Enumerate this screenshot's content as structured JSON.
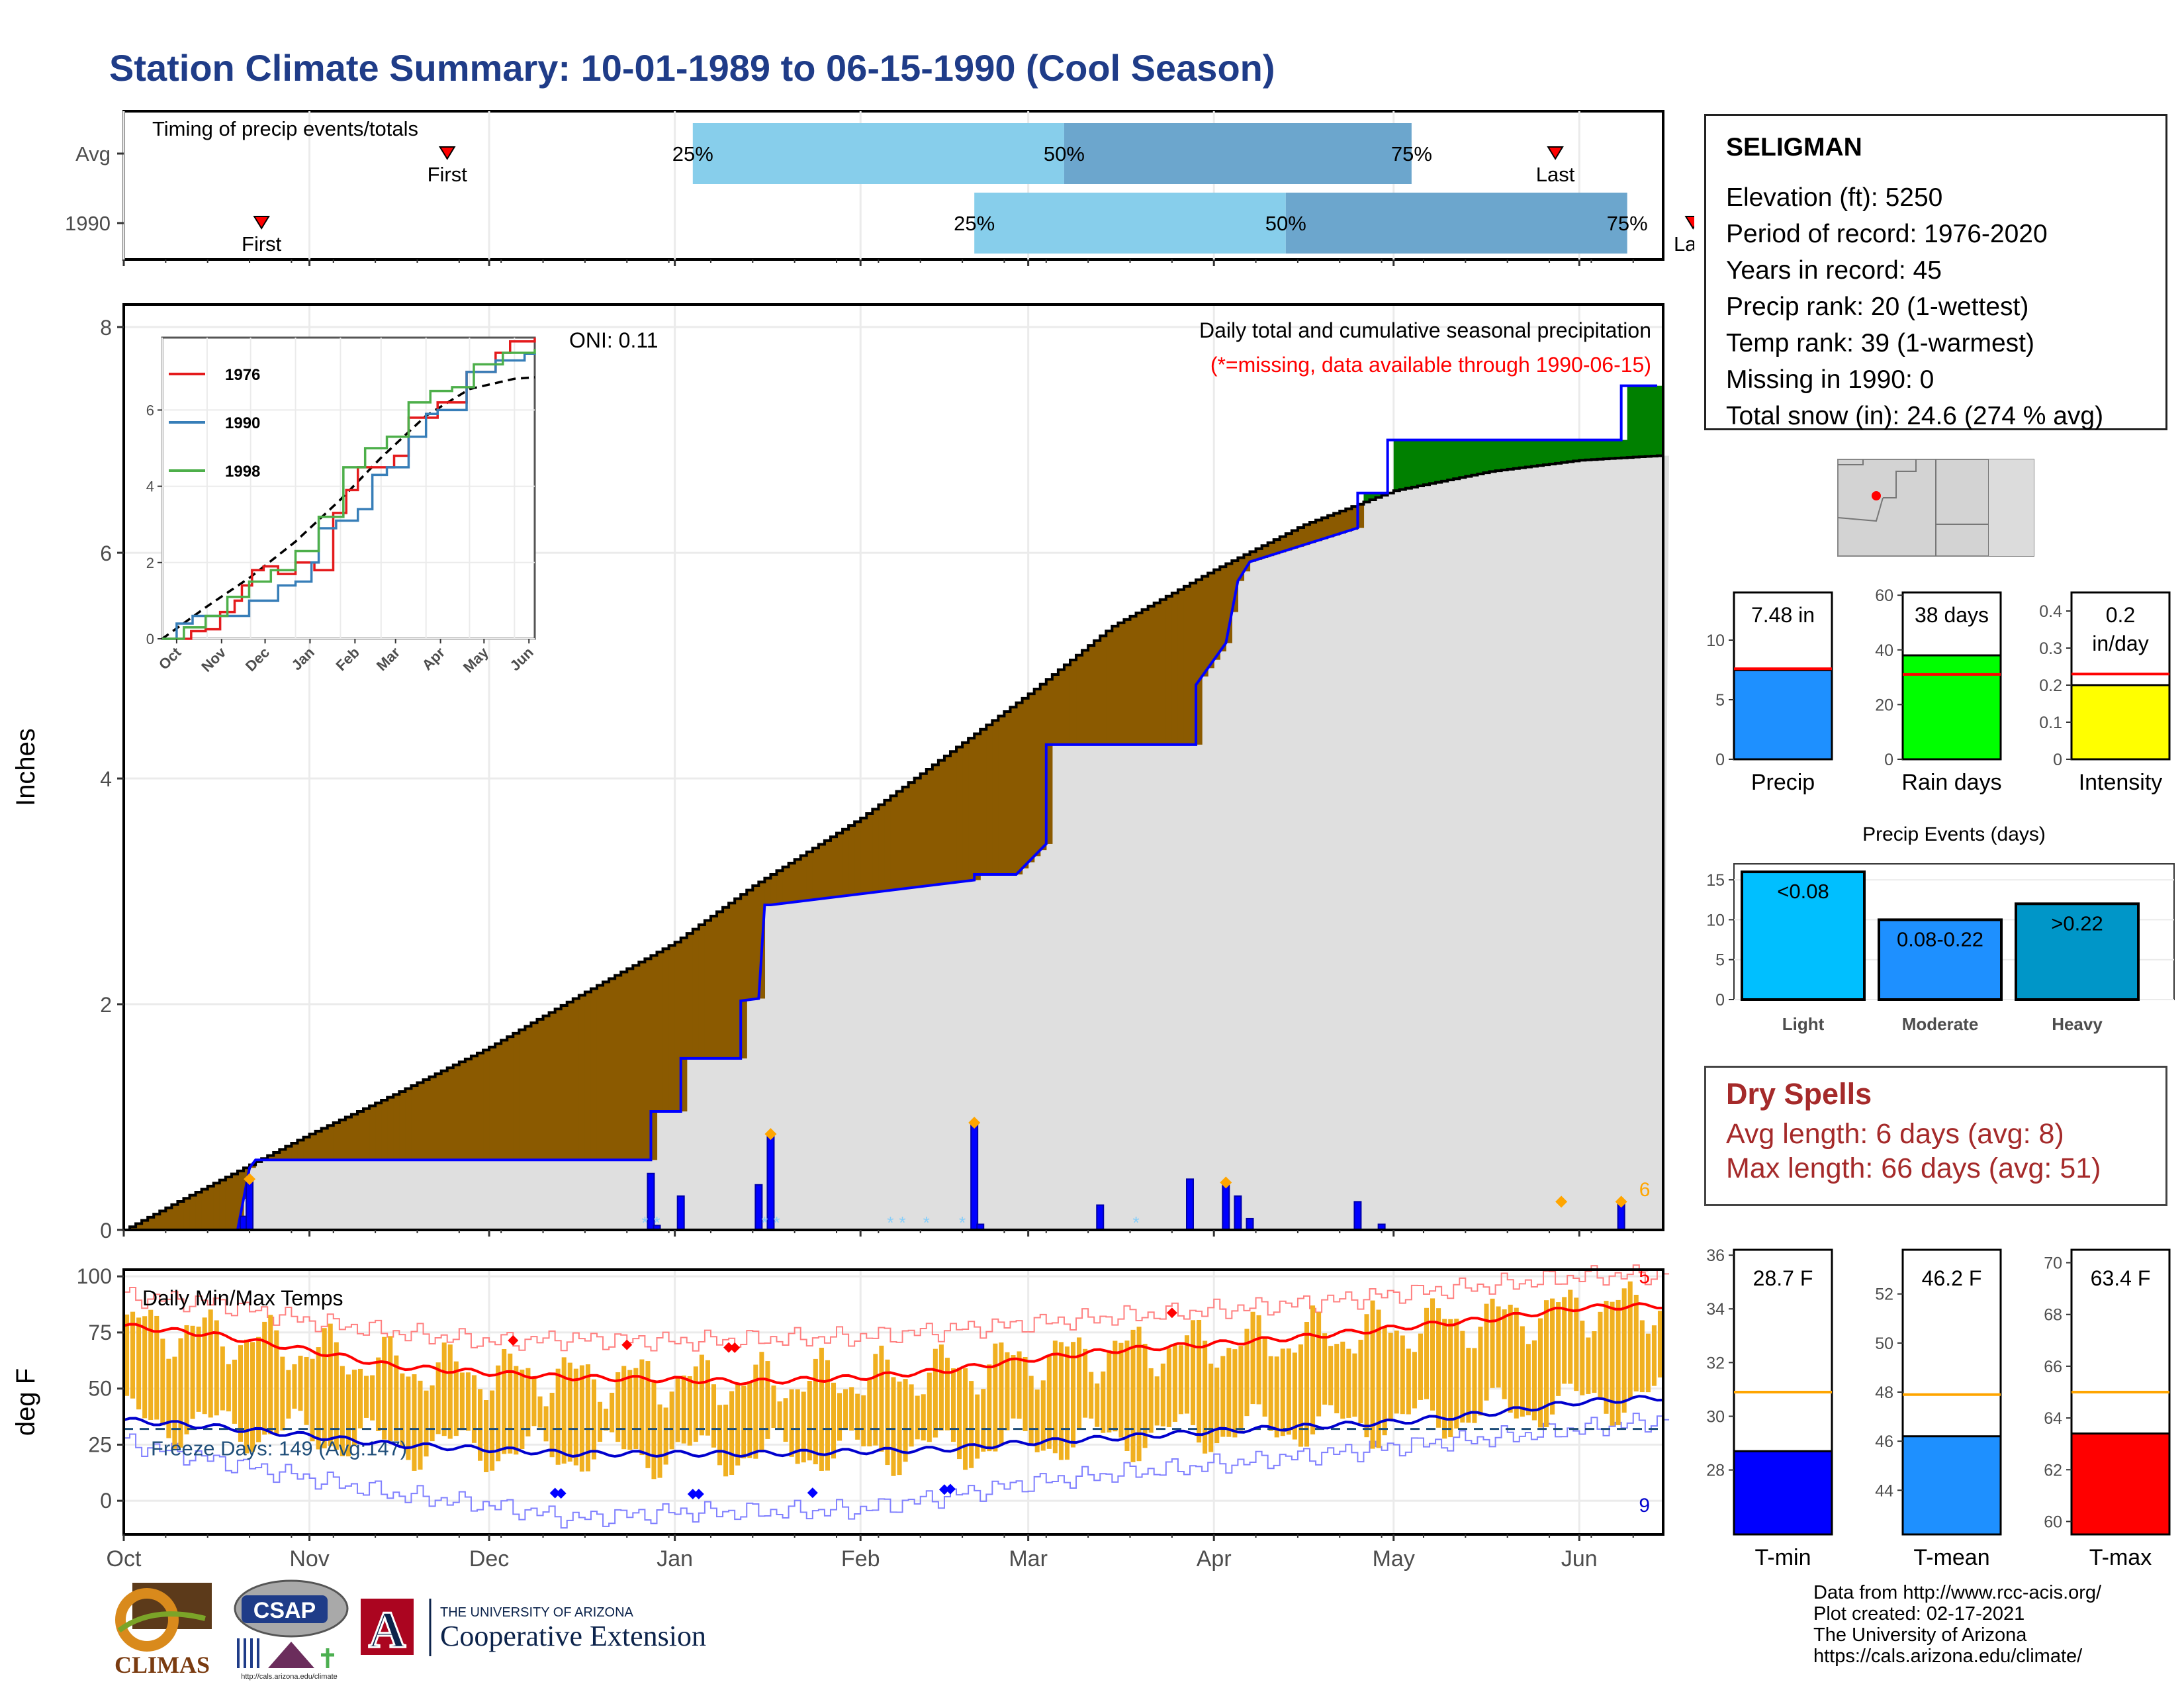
{
  "title": "Station Climate Summary: 10-01-1989 to 06-15-1990 (Cool Season)",
  "station": {
    "name": "SELIGMAN",
    "lines": [
      "Elevation (ft): 5250",
      "Period of record: 1976-2020",
      "Years in record: 45",
      "Precip rank: 20 (1-wettest)",
      "Temp rank: 39 (1-warmest)",
      "Missing in 1990: 0",
      "Total snow (in): 24.6 (274 % avg)"
    ]
  },
  "timing": {
    "title": "Timing of precip events/totals",
    "rows": [
      {
        "label": "Avg",
        "first_day": 54,
        "q25_day": 95,
        "q50_day": 157,
        "q75_day": 215,
        "last_day": 239,
        "first_label": "First",
        "last_label": "Last"
      },
      {
        "label": "1990",
        "first_day": 23,
        "q25_day": 142,
        "q50_day": 194,
        "q75_day": 251,
        "last_day": 262,
        "first_label": "First",
        "last_label": "Last"
      }
    ],
    "pct_labels": [
      "25%",
      "50%",
      "75%"
    ]
  },
  "colors": {
    "title": "#1F3C88",
    "cum_obs": "#0000FF",
    "deficit": "#8B5A00",
    "surplus": "#008000",
    "normal_fill": "#DFDFDF",
    "timing_light": "#87CEEB",
    "timing_dark": "#6CA6CD",
    "tmax": "#FF0000",
    "tmin": "#0000CD",
    "temp_bar": "#F0B020",
    "freeze": "#1F4E79",
    "dry_text": "#A52A2A"
  },
  "chart_data": [
    {
      "type": "area",
      "name": "main_precip",
      "ylabel": "Inches",
      "ylim": [
        0,
        8.2
      ],
      "yticks": [
        0,
        2,
        4,
        6,
        8
      ],
      "xlim": [
        0,
        257
      ],
      "month_labels": [
        "Oct",
        "Nov",
        "Dec",
        "Jan",
        "Feb",
        "Mar",
        "Apr",
        "May",
        "Jun"
      ],
      "month_starts": [
        0,
        31,
        61,
        92,
        123,
        151,
        182,
        212,
        243
      ],
      "annotation_oni": "ONI: 0.11",
      "annotation_title": "Daily total and cumulative seasonal precipitation",
      "annotation_missing": "(*=missing, data available through 1990-06-15)",
      "normal_cum": {
        "x": [
          0,
          10,
          20,
          31,
          45,
          61,
          75,
          92,
          105,
          123,
          137,
          151,
          165,
          182,
          197,
          212,
          228,
          243,
          256
        ],
        "y": [
          0,
          0.28,
          0.55,
          0.85,
          1.2,
          1.62,
          2.05,
          2.55,
          3.05,
          3.65,
          4.2,
          4.75,
          5.35,
          5.85,
          6.25,
          6.55,
          6.72,
          6.82,
          6.86
        ]
      },
      "obs_cum": {
        "x": [
          0,
          19,
          21,
          22,
          88,
          88,
          93,
          93,
          103,
          103,
          106,
          107,
          108,
          142,
          142,
          149,
          154,
          154,
          179,
          179,
          184,
          186,
          188,
          206,
          206,
          211,
          211,
          250,
          250,
          256
        ],
        "y": [
          0,
          0,
          0.55,
          0.62,
          0.62,
          1.05,
          1.05,
          1.52,
          1.52,
          2.03,
          2.05,
          2.88,
          2.88,
          3.1,
          3.15,
          3.15,
          3.42,
          4.3,
          4.3,
          4.83,
          5.2,
          5.75,
          5.92,
          6.22,
          6.53,
          6.53,
          7.0,
          7.0,
          7.48,
          7.48
        ]
      },
      "daily_precip": {
        "x": [
          20,
          21,
          88,
          89,
          93,
          106,
          108,
          142,
          143,
          163,
          178,
          184,
          186,
          188,
          206,
          210,
          250
        ],
        "y": [
          0.12,
          0.45,
          0.5,
          0.04,
          0.3,
          0.4,
          0.85,
          0.95,
          0.05,
          0.22,
          0.45,
          0.42,
          0.3,
          0.1,
          0.25,
          0.05,
          0.25
        ]
      },
      "max_flags_x": [
        21,
        108,
        142,
        184,
        240,
        250
      ],
      "snow_marks_x": [
        87,
        89,
        107,
        109,
        128,
        130,
        134,
        140,
        169
      ],
      "end_label": "6"
    },
    {
      "type": "line",
      "name": "inset_cumulative",
      "series": [
        {
          "name": "1976",
          "color": "#E41A1C",
          "x": [
            0,
            20,
            30,
            40,
            50,
            55,
            62,
            70,
            80,
            92,
            105,
            118,
            127,
            135,
            145,
            160,
            170,
            190,
            210,
            230,
            240,
            257
          ],
          "y": [
            0,
            0.2,
            0.25,
            0.7,
            1.0,
            1.4,
            1.8,
            1.9,
            1.7,
            2.0,
            1.8,
            3.3,
            3.9,
            4.5,
            4.5,
            4.8,
            5.8,
            6.2,
            7.0,
            7.5,
            7.8,
            7.9
          ]
        },
        {
          "name": "1990",
          "color": "#377EB8",
          "x": [
            0,
            10,
            21,
            50,
            60,
            70,
            80,
            92,
            103,
            108,
            120,
            135,
            145,
            155,
            170,
            182,
            190,
            210,
            230,
            250,
            257
          ],
          "y": [
            0,
            0.4,
            0.6,
            0.6,
            1.0,
            1.0,
            1.4,
            1.5,
            2.0,
            2.9,
            3.1,
            3.4,
            4.3,
            4.5,
            5.3,
            5.9,
            6.0,
            7.0,
            7.3,
            7.48,
            7.5
          ]
        },
        {
          "name": "1998",
          "color": "#4DAF4A",
          "x": [
            0,
            15,
            30,
            45,
            60,
            75,
            92,
            108,
            125,
            140,
            155,
            170,
            185,
            200,
            215,
            235,
            257
          ],
          "y": [
            0,
            0.3,
            0.6,
            1.1,
            1.5,
            1.8,
            2.3,
            3.2,
            4.5,
            5.0,
            5.3,
            6.2,
            6.5,
            6.6,
            7.2,
            7.5,
            7.6
          ]
        }
      ],
      "normal": {
        "x": [
          0,
          31,
          61,
          92,
          123,
          151,
          182,
          212,
          243,
          257
        ],
        "y": [
          0,
          0.85,
          1.62,
          2.55,
          3.65,
          4.75,
          5.85,
          6.55,
          6.82,
          6.86
        ]
      },
      "ylim": [
        0,
        7.9
      ],
      "yticks": [
        0,
        2,
        4,
        6
      ],
      "month_labels": [
        "Oct",
        "Nov",
        "Dec",
        "Jan",
        "Feb",
        "Mar",
        "Apr",
        "May",
        "Jun"
      ]
    },
    {
      "type": "bar",
      "name": "temps",
      "title": "Daily Min/Max Temps",
      "ylabel": "deg F",
      "ylim": [
        -15,
        103
      ],
      "yticks": [
        0,
        25,
        50,
        75,
        100
      ],
      "freeze_label": "Freeze Days: 149 (Avg:147)",
      "freeze_level": 32,
      "avg_max": {
        "x": [
          0,
          15,
          31,
          45,
          61,
          75,
          92,
          105,
          123,
          137,
          151,
          165,
          182,
          197,
          212,
          228,
          243,
          257
        ],
        "y": [
          78,
          74,
          67,
          60,
          57,
          55,
          54,
          53,
          55,
          58,
          63,
          67,
          70,
          73,
          77,
          81,
          86,
          87
        ]
      },
      "avg_min": {
        "x": [
          0,
          15,
          31,
          45,
          61,
          75,
          92,
          105,
          123,
          137,
          151,
          165,
          182,
          197,
          212,
          228,
          243,
          257
        ],
        "y": [
          36,
          33,
          29,
          25,
          23,
          21,
          21,
          21,
          22,
          23,
          26,
          28,
          31,
          33,
          35,
          39,
          44,
          46
        ]
      },
      "rec_max": {
        "x": [
          0,
          15,
          31,
          45,
          61,
          75,
          92,
          105,
          123,
          137,
          151,
          165,
          182,
          197,
          212,
          228,
          243,
          257
        ],
        "y": [
          91,
          88,
          80,
          75,
          71,
          72,
          71,
          72,
          73,
          76,
          79,
          82,
          85,
          88,
          92,
          96,
          100,
          101
        ]
      },
      "rec_min": {
        "x": [
          0,
          15,
          31,
          45,
          61,
          75,
          92,
          105,
          123,
          137,
          151,
          165,
          182,
          197,
          212,
          228,
          243,
          257
        ],
        "y": [
          26,
          18,
          10,
          3,
          -2,
          -8,
          -5,
          -5,
          -4,
          2,
          8,
          12,
          16,
          20,
          24,
          28,
          32,
          36
        ]
      },
      "max_record_x": [
        65,
        84,
        101,
        102,
        175
      ],
      "min_record_x": [
        72,
        73,
        95,
        96,
        115,
        137,
        138
      ],
      "label_top": "5",
      "label_bottom": "9"
    },
    {
      "type": "bar",
      "name": "totals",
      "panels": [
        {
          "label": "Precip",
          "value": 7.48,
          "normal": 7.6,
          "ylim": [
            0,
            14
          ],
          "yticks": [
            0,
            5,
            10
          ],
          "value_label": "7.48 in",
          "color": "#1E90FF"
        },
        {
          "label": "Rain days",
          "value": 38,
          "normal": 31,
          "ylim": [
            0,
            61
          ],
          "yticks": [
            0,
            20,
            40,
            60
          ],
          "value_label": "38 days",
          "color": "#00FF00"
        },
        {
          "label": "Intensity",
          "value": 0.2,
          "normal": 0.23,
          "ylim": [
            0,
            0.45
          ],
          "yticks": [
            0.0,
            0.1,
            0.2,
            0.3,
            0.4
          ],
          "value_label": "0.2 in/day",
          "color": "#FFFF00"
        }
      ]
    },
    {
      "type": "bar",
      "name": "precip_events",
      "title": "Precip Events (days)",
      "categories": [
        "Light",
        "Moderate",
        "Heavy"
      ],
      "bar_labels": [
        "<0.08",
        "0.08-0.22",
        ">0.22"
      ],
      "values": [
        16,
        10,
        12
      ],
      "ylim": [
        0,
        17
      ],
      "yticks": [
        0,
        5,
        10,
        15
      ],
      "colors": [
        "#00BFFF",
        "#1E90FF",
        "#0096C8"
      ]
    },
    {
      "type": "bar",
      "name": "temp_summary",
      "panels": [
        {
          "label": "T-min",
          "value": 28.7,
          "normal": 30.9,
          "ylim": [
            25.6,
            36.2
          ],
          "yticks": [
            28,
            30,
            32,
            34,
            36
          ],
          "value_label": "28.7 F",
          "color": "#0000FF"
        },
        {
          "label": "T-mean",
          "value": 46.2,
          "normal": 47.9,
          "ylim": [
            42.2,
            53.8
          ],
          "yticks": [
            44,
            46,
            48,
            50,
            52
          ],
          "value_label": "46.2 F",
          "color": "#1E90FF"
        },
        {
          "label": "T-max",
          "value": 63.4,
          "normal": 65.0,
          "ylim": [
            59.5,
            70.5
          ],
          "yticks": [
            60,
            62,
            64,
            66,
            68,
            70
          ],
          "value_label": "63.4 F",
          "color": "#FF0000"
        }
      ]
    }
  ],
  "dry_spells": {
    "title": "Dry Spells",
    "avg": "Avg length: 6 days (avg: 8)",
    "max": "Max length: 66 days (avg: 51)"
  },
  "credits": [
    "Data from http://www.rcc-acis.org/",
    "Plot created: 02-17-2021",
    "The University of Arizona",
    "https://cals.arizona.edu/climate/"
  ],
  "logos": {
    "climas": "CLIMAS",
    "csap": "CSAP",
    "csap_url": "http://cals.arizona.edu/climate",
    "ua_small": "THE UNIVERSITY OF ARIZONA",
    "ua_big": "Cooperative Extension",
    "ua_mark": "A"
  }
}
